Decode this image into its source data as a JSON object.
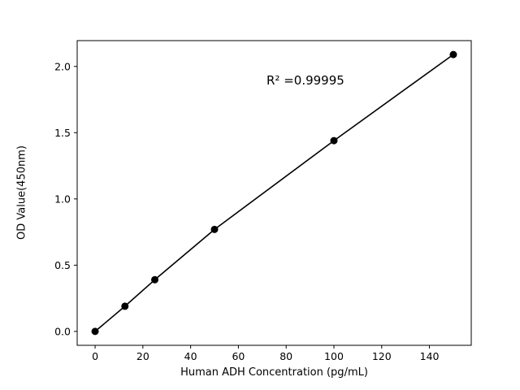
{
  "chart_data": {
    "type": "line",
    "title": "",
    "xlabel": "Human ADH Concentration (pg/mL)",
    "ylabel": "OD Value(450nm)",
    "annotation": "R² =0.99995",
    "x": [
      0,
      12.5,
      25,
      50,
      100,
      150
    ],
    "y": [
      0.0,
      0.19,
      0.39,
      0.77,
      1.44,
      2.09
    ],
    "xticks": [
      0,
      20,
      40,
      60,
      80,
      100,
      120,
      140
    ],
    "xtick_labels": [
      "0",
      "20",
      "40",
      "60",
      "80",
      "100",
      "120",
      "140"
    ],
    "yticks": [
      0.0,
      0.5,
      1.0,
      1.5,
      2.0
    ],
    "ytick_labels": [
      "0.0",
      "0.5",
      "1.0",
      "1.5",
      "2.0"
    ],
    "xlim": [
      -7.5,
      157.5
    ],
    "ylim": [
      -0.105,
      2.195
    ],
    "line_color": "#000000",
    "marker_color": "#000000",
    "axis_color": "#000000",
    "background": "#ffffff",
    "legend": "none",
    "grid": false
  }
}
